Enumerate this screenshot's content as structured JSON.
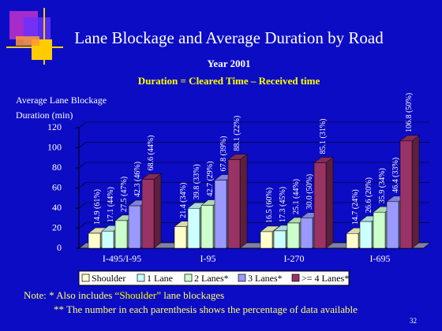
{
  "title": "Lane Blockage and Average Duration by Road",
  "subtitle": "Year 2001",
  "formula": "Duration = Cleared Time – Received time",
  "note": {
    "prefix": "Note: * Also includes ",
    "highlight": "“Shoulder”",
    "suffix": " lane blockages"
  },
  "note2": "** The number in each parenthesis shows the percentage of data available",
  "page_number": "32",
  "chart_data": {
    "type": "bar3d",
    "y_label": "Average Lane Blockage Duration (min)",
    "categories": [
      "I-495/I-95",
      "I-95",
      "I-270",
      "I-695"
    ],
    "ylim": [
      0,
      120
    ],
    "yticks": [
      0,
      20,
      40,
      60,
      80,
      100,
      120
    ],
    "grid": true,
    "legend": "bottom",
    "series": [
      {
        "name": "Shoulder",
        "color": "#ffffcc",
        "values": [
          14.9,
          21.4,
          16.5,
          14.7
        ],
        "value_labels": [
          "14.9 (61%)",
          "21.4 (34%)",
          "16.5 (60%)",
          "14.7 (24%)"
        ]
      },
      {
        "name": "1 Lane",
        "color": "#ccffff",
        "values": [
          17.1,
          39.8,
          17.3,
          26.6
        ],
        "value_labels": [
          "17.1 (44%)",
          "39.8 (33%)",
          "17.3 (45%)",
          "26.6 (20%)"
        ]
      },
      {
        "name": "2 Lanes*",
        "color": "#ccffcc",
        "values": [
          27.5,
          42.7,
          25.1,
          35.9
        ],
        "value_labels": [
          "27.5 (47%)",
          "42.7 (29%)",
          "25.1 (44%)",
          "35.9 (34%)"
        ]
      },
      {
        "name": "3 Lanes*",
        "color": "#9999ff",
        "values": [
          42.3,
          67.8,
          30,
          46.4
        ],
        "value_labels": [
          "42.3 (46%)",
          "67.8 (39%)",
          "30.0 (50%)",
          "46.4 (33%)"
        ]
      },
      {
        "name": ">= 4 Lanes*",
        "color": "#993366",
        "values": [
          68.6,
          88.1,
          85.1,
          106.8
        ],
        "value_labels": [
          "68.6 (44%)",
          "88.1 (22%)",
          "85.1 (31%)",
          "106.8 (50%)"
        ]
      }
    ]
  }
}
